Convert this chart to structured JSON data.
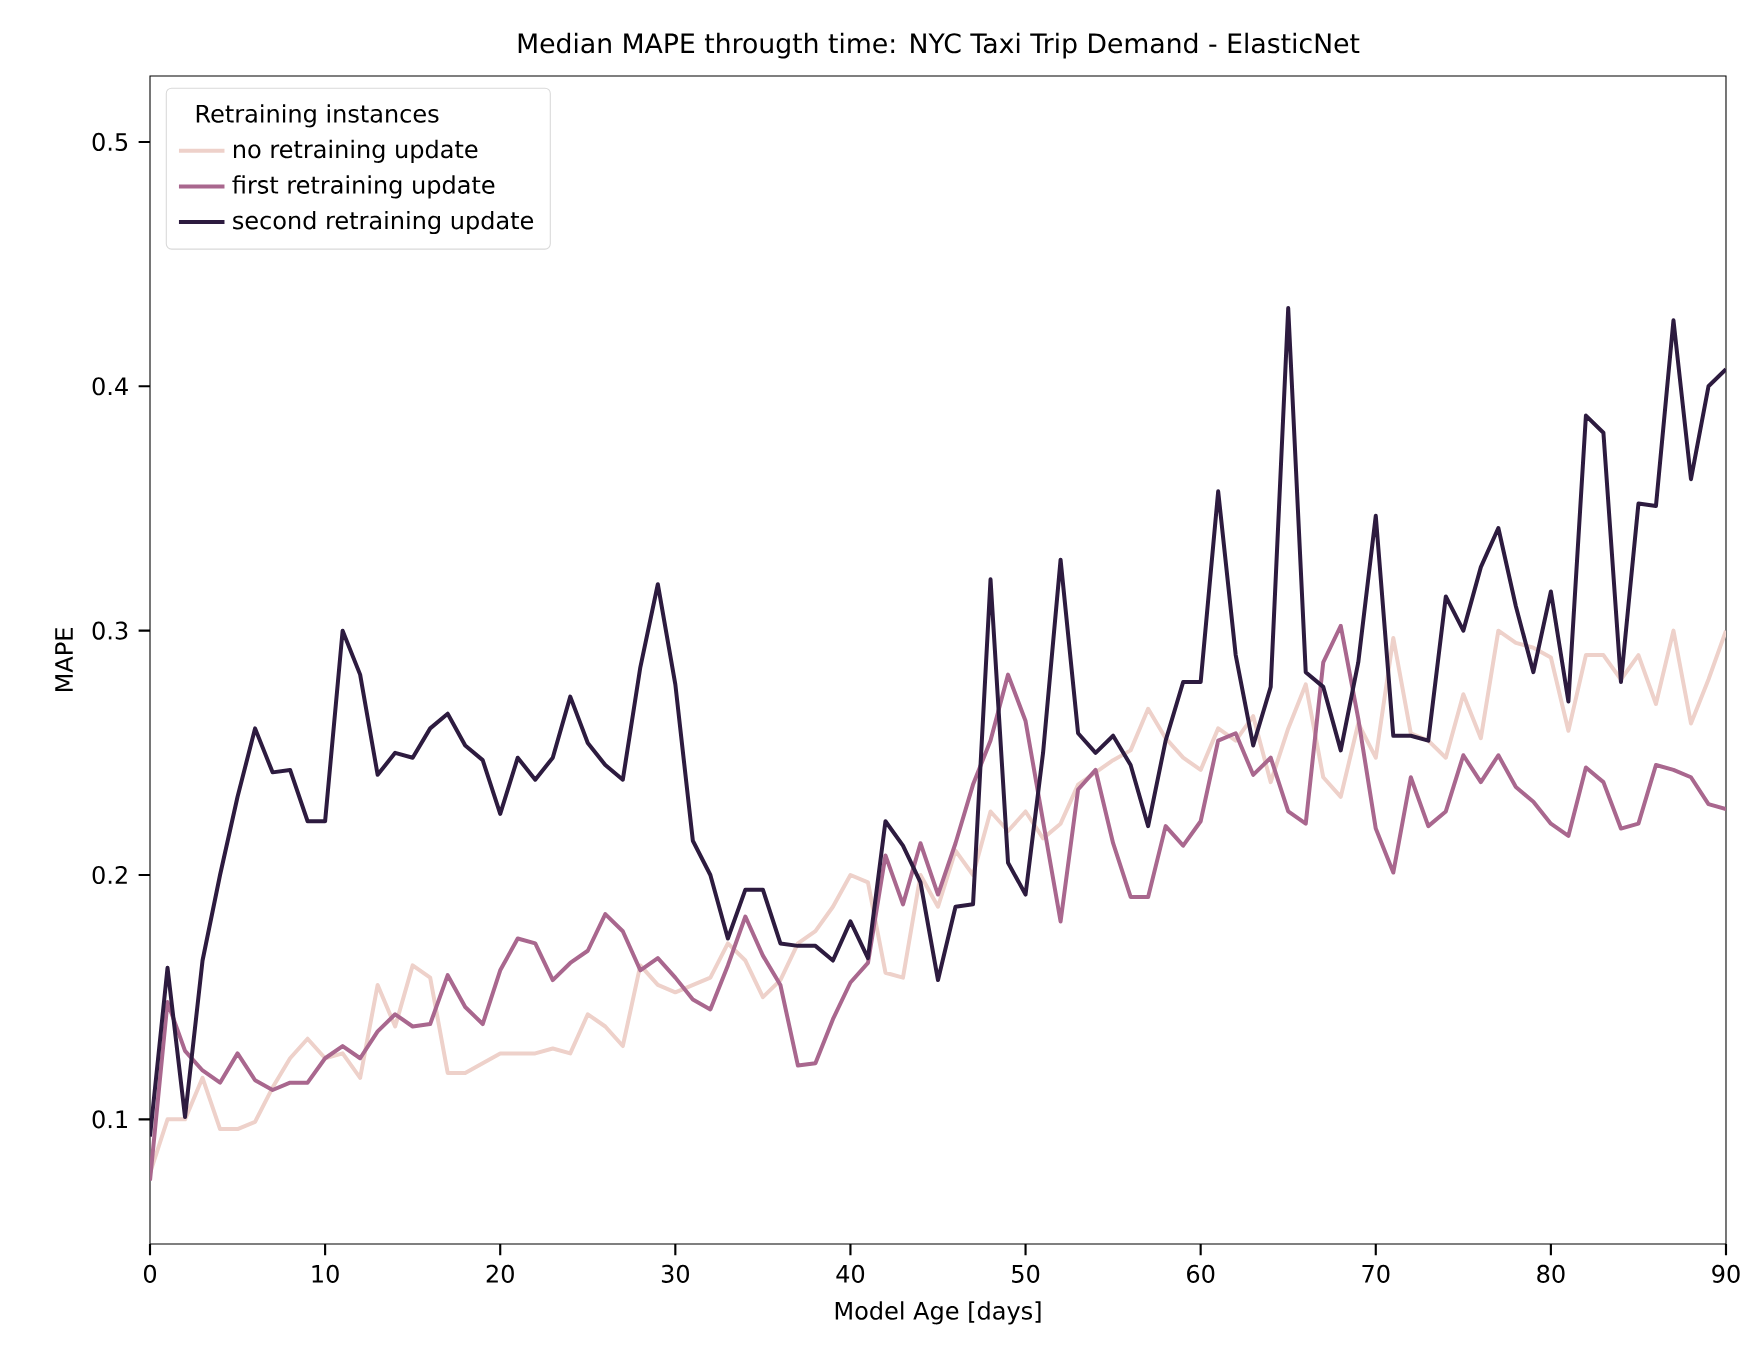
{
  "chart_data": {
    "type": "line",
    "title": "Median MAPE througth time: NYC Taxi Trip Demand - ElasticNet",
    "xlabel": "Model Age [days]",
    "ylabel": "MAPE",
    "legend_title": "Retraining instances",
    "legend": "top left",
    "grid": false,
    "x": [
      0,
      1,
      2,
      3,
      4,
      5,
      6,
      7,
      8,
      9,
      10,
      11,
      12,
      13,
      14,
      15,
      16,
      17,
      18,
      19,
      20,
      21,
      22,
      23,
      24,
      25,
      26,
      27,
      28,
      29,
      30,
      31,
      32,
      33,
      34,
      35,
      36,
      37,
      38,
      39,
      40,
      41,
      42,
      43,
      44,
      45,
      46,
      47,
      48,
      49,
      50,
      51,
      52,
      53,
      54,
      55,
      56,
      57,
      58,
      59,
      60,
      61,
      62,
      63,
      64,
      65,
      66,
      67,
      68,
      69,
      70,
      71,
      72,
      73,
      74,
      75,
      76,
      77,
      78,
      79,
      80,
      81,
      82,
      83,
      84,
      85,
      86,
      87,
      88,
      89,
      90
    ],
    "xlim": [
      0,
      90
    ],
    "xticks": [
      0,
      10,
      20,
      30,
      40,
      50,
      60,
      70,
      80,
      90
    ],
    "ylim": [
      0.049,
      0.527
    ],
    "yticks": [
      0.1,
      0.2,
      0.3,
      0.4,
      0.5
    ],
    "series": [
      {
        "name": "no retraining update",
        "color": "#eed1ca",
        "values": [
          0.078,
          0.1,
          0.1,
          0.117,
          0.096,
          0.096,
          0.099,
          0.113,
          0.125,
          0.133,
          0.125,
          0.127,
          0.117,
          0.155,
          0.138,
          0.163,
          0.158,
          0.119,
          0.119,
          0.123,
          0.127,
          0.127,
          0.127,
          0.129,
          0.127,
          0.143,
          0.138,
          0.13,
          0.163,
          0.155,
          0.152,
          0.155,
          0.158,
          0.172,
          0.165,
          0.15,
          0.157,
          0.172,
          0.177,
          0.187,
          0.2,
          0.197,
          0.16,
          0.158,
          0.2,
          0.187,
          0.21,
          0.2,
          0.226,
          0.218,
          0.226,
          0.215,
          0.221,
          0.237,
          0.242,
          0.247,
          0.251,
          0.268,
          0.256,
          0.248,
          0.243,
          0.26,
          0.255,
          0.265,
          0.238,
          0.26,
          0.278,
          0.24,
          0.232,
          0.262,
          0.248,
          0.297,
          0.258,
          0.255,
          0.248,
          0.274,
          0.256,
          0.3,
          0.295,
          0.293,
          0.289,
          0.259,
          0.29,
          0.29,
          0.28,
          0.29,
          0.27,
          0.3,
          0.262,
          0.28,
          0.3
        ]
      },
      {
        "name": "first retraining update",
        "color": "#a9678e",
        "values": [
          0.075,
          0.148,
          0.128,
          0.12,
          0.115,
          0.127,
          0.116,
          0.112,
          0.115,
          0.115,
          0.125,
          0.13,
          0.125,
          0.136,
          0.143,
          0.138,
          0.139,
          0.159,
          0.146,
          0.139,
          0.161,
          0.174,
          0.172,
          0.157,
          0.164,
          0.169,
          0.184,
          0.177,
          0.161,
          0.166,
          0.158,
          0.149,
          0.145,
          0.163,
          0.183,
          0.167,
          0.155,
          0.122,
          0.123,
          0.141,
          0.156,
          0.164,
          0.208,
          0.188,
          0.213,
          0.192,
          0.213,
          0.237,
          0.255,
          0.282,
          0.263,
          0.222,
          0.181,
          0.235,
          0.243,
          0.213,
          0.191,
          0.191,
          0.22,
          0.212,
          0.222,
          0.255,
          0.258,
          0.241,
          0.248,
          0.226,
          0.221,
          0.287,
          0.302,
          0.264,
          0.219,
          0.201,
          0.24,
          0.22,
          0.226,
          0.249,
          0.238,
          0.249,
          0.236,
          0.23,
          0.221,
          0.216,
          0.244,
          0.238,
          0.219,
          0.221,
          0.245,
          0.243,
          0.24,
          0.229,
          0.227
        ]
      },
      {
        "name": "second retraining update",
        "color": "#2d1b3f",
        "values": [
          0.093,
          0.162,
          0.101,
          0.165,
          0.2,
          0.232,
          0.26,
          0.242,
          0.243,
          0.222,
          0.222,
          0.3,
          0.282,
          0.241,
          0.25,
          0.248,
          0.26,
          0.266,
          0.253,
          0.247,
          0.225,
          0.248,
          0.239,
          0.248,
          0.273,
          0.254,
          0.245,
          0.239,
          0.285,
          0.319,
          0.278,
          0.214,
          0.2,
          0.174,
          0.194,
          0.194,
          0.172,
          0.171,
          0.171,
          0.165,
          0.181,
          0.166,
          0.222,
          0.212,
          0.197,
          0.157,
          0.187,
          0.188,
          0.321,
          0.205,
          0.192,
          0.25,
          0.329,
          0.258,
          0.25,
          0.257,
          0.245,
          0.22,
          0.255,
          0.279,
          0.279,
          0.357,
          0.29,
          0.253,
          0.277,
          0.432,
          0.283,
          0.277,
          0.251,
          0.287,
          0.347,
          0.257,
          0.257,
          0.255,
          0.314,
          0.3,
          0.326,
          0.342,
          0.31,
          0.283,
          0.316,
          0.271,
          0.388,
          0.381,
          0.279,
          0.352,
          0.351,
          0.427,
          0.362,
          0.4,
          0.407
        ]
      }
    ]
  }
}
